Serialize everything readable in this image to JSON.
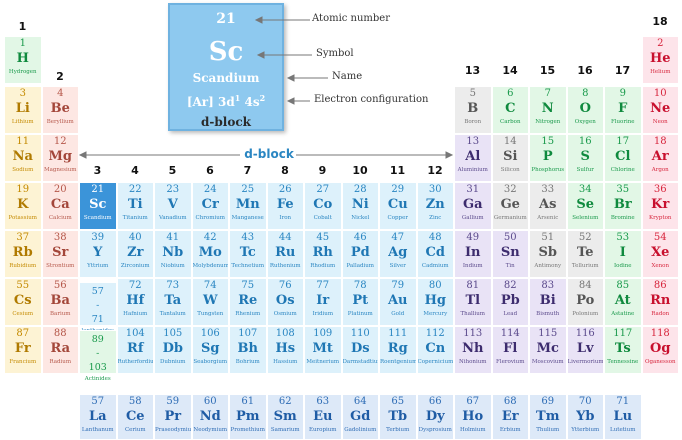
{
  "legend": {
    "number": "21",
    "symbol": "Sc",
    "name": "Scandium",
    "config_core": "[Ar] 3d",
    "config_sup1": "1",
    "config_mid": " 4s",
    "config_sup2": "2",
    "block": "d-block",
    "callouts": [
      "Atomic number",
      "Symbol",
      "Name",
      "Electron configuration"
    ]
  },
  "dblock_label": "d-block",
  "group_labels": [
    "1",
    "2",
    "3",
    "4",
    "5",
    "6",
    "7",
    "8",
    "9",
    "10",
    "11",
    "12",
    "13",
    "14",
    "15",
    "16",
    "17",
    "18"
  ],
  "placeholders": [
    {
      "range": "57 - 71",
      "label": "lanthanides",
      "kind": "lan"
    },
    {
      "range": "89 - 103",
      "label": "Actinides",
      "kind": "act"
    }
  ],
  "colors": {
    "alkali": "#fdf3d4",
    "alkaline": "#fde7e3",
    "transition": "#ddf1fb",
    "post": "#e9e3f6",
    "metalloid": "#ececec",
    "nonmetal": "#e2f7e6",
    "noble": "#fde4ea",
    "lanth": "#dde9f8",
    "highlight": "#3b94d9"
  },
  "elements": [
    {
      "n": "1",
      "s": "H",
      "name": "Hydrogen",
      "p": 1,
      "g": 1,
      "c": "nonmetal"
    },
    {
      "n": "2",
      "s": "He",
      "name": "Helium",
      "p": 1,
      "g": 18,
      "c": "noble"
    },
    {
      "n": "3",
      "s": "Li",
      "name": "Lithium",
      "p": 2,
      "g": 1,
      "c": "alkali"
    },
    {
      "n": "4",
      "s": "Be",
      "name": "Beryllium",
      "p": 2,
      "g": 2,
      "c": "alkaline"
    },
    {
      "n": "5",
      "s": "B",
      "name": "Boron",
      "p": 2,
      "g": 13,
      "c": "metalloid"
    },
    {
      "n": "6",
      "s": "C",
      "name": "Carbon",
      "p": 2,
      "g": 14,
      "c": "nonmetal"
    },
    {
      "n": "7",
      "s": "N",
      "name": "Nitrogen",
      "p": 2,
      "g": 15,
      "c": "nonmetal"
    },
    {
      "n": "8",
      "s": "O",
      "name": "Oxygen",
      "p": 2,
      "g": 16,
      "c": "nonmetal"
    },
    {
      "n": "9",
      "s": "F",
      "name": "Fluorine",
      "p": 2,
      "g": 17,
      "c": "nonmetal"
    },
    {
      "n": "10",
      "s": "Ne",
      "name": "Neon",
      "p": 2,
      "g": 18,
      "c": "noble"
    },
    {
      "n": "11",
      "s": "Na",
      "name": "Sodium",
      "p": 3,
      "g": 1,
      "c": "alkali"
    },
    {
      "n": "12",
      "s": "Mg",
      "name": "Magnesium",
      "p": 3,
      "g": 2,
      "c": "alkaline"
    },
    {
      "n": "13",
      "s": "Al",
      "name": "Aluminium",
      "p": 3,
      "g": 13,
      "c": "post"
    },
    {
      "n": "14",
      "s": "Si",
      "name": "Silicon",
      "p": 3,
      "g": 14,
      "c": "metalloid"
    },
    {
      "n": "15",
      "s": "P",
      "name": "Phosphorus",
      "p": 3,
      "g": 15,
      "c": "nonmetal"
    },
    {
      "n": "16",
      "s": "S",
      "name": "Sulfur",
      "p": 3,
      "g": 16,
      "c": "nonmetal"
    },
    {
      "n": "17",
      "s": "Cl",
      "name": "Chlorine",
      "p": 3,
      "g": 17,
      "c": "nonmetal"
    },
    {
      "n": "18",
      "s": "Ar",
      "name": "Argon",
      "p": 3,
      "g": 18,
      "c": "noble"
    },
    {
      "n": "19",
      "s": "K",
      "name": "Potassium",
      "p": 4,
      "g": 1,
      "c": "alkali"
    },
    {
      "n": "20",
      "s": "Ca",
      "name": "Calcium",
      "p": 4,
      "g": 2,
      "c": "alkaline"
    },
    {
      "n": "21",
      "s": "Sc",
      "name": "Scandium",
      "p": 4,
      "g": 3,
      "c": "hl"
    },
    {
      "n": "22",
      "s": "Ti",
      "name": "Titanium",
      "p": 4,
      "g": 4,
      "c": "transition"
    },
    {
      "n": "23",
      "s": "V",
      "name": "Vanadium",
      "p": 4,
      "g": 5,
      "c": "transition"
    },
    {
      "n": "24",
      "s": "Cr",
      "name": "Chromium",
      "p": 4,
      "g": 6,
      "c": "transition"
    },
    {
      "n": "25",
      "s": "Mn",
      "name": "Manganese",
      "p": 4,
      "g": 7,
      "c": "transition"
    },
    {
      "n": "26",
      "s": "Fe",
      "name": "Iron",
      "p": 4,
      "g": 8,
      "c": "transition"
    },
    {
      "n": "27",
      "s": "Co",
      "name": "Cobalt",
      "p": 4,
      "g": 9,
      "c": "transition"
    },
    {
      "n": "28",
      "s": "Ni",
      "name": "Nickel",
      "p": 4,
      "g": 10,
      "c": "transition"
    },
    {
      "n": "29",
      "s": "Cu",
      "name": "Copper",
      "p": 4,
      "g": 11,
      "c": "transition"
    },
    {
      "n": "30",
      "s": "Zn",
      "name": "Zinc",
      "p": 4,
      "g": 12,
      "c": "transition"
    },
    {
      "n": "31",
      "s": "Ga",
      "name": "Gallium",
      "p": 4,
      "g": 13,
      "c": "post"
    },
    {
      "n": "32",
      "s": "Ge",
      "name": "Germanium",
      "p": 4,
      "g": 14,
      "c": "metalloid"
    },
    {
      "n": "33",
      "s": "As",
      "name": "Arsenic",
      "p": 4,
      "g": 15,
      "c": "metalloid"
    },
    {
      "n": "34",
      "s": "Se",
      "name": "Selenium",
      "p": 4,
      "g": 16,
      "c": "nonmetal"
    },
    {
      "n": "35",
      "s": "Br",
      "name": "Bromine",
      "p": 4,
      "g": 17,
      "c": "nonmetal"
    },
    {
      "n": "36",
      "s": "Kr",
      "name": "Krypton",
      "p": 4,
      "g": 18,
      "c": "noble"
    },
    {
      "n": "37",
      "s": "Rb",
      "name": "Rubidium",
      "p": 5,
      "g": 1,
      "c": "alkali"
    },
    {
      "n": "38",
      "s": "Sr",
      "name": "Strontium",
      "p": 5,
      "g": 2,
      "c": "alkaline"
    },
    {
      "n": "39",
      "s": "Y",
      "name": "Yttrium",
      "p": 5,
      "g": 3,
      "c": "transition"
    },
    {
      "n": "40",
      "s": "Zr",
      "name": "Zirconium",
      "p": 5,
      "g": 4,
      "c": "transition"
    },
    {
      "n": "41",
      "s": "Nb",
      "name": "Niobium",
      "p": 5,
      "g": 5,
      "c": "transition"
    },
    {
      "n": "42",
      "s": "Mo",
      "name": "Molybdenum",
      "p": 5,
      "g": 6,
      "c": "transition"
    },
    {
      "n": "43",
      "s": "Tc",
      "name": "Technetium",
      "p": 5,
      "g": 7,
      "c": "transition"
    },
    {
      "n": "44",
      "s": "Ru",
      "name": "Ruthenium",
      "p": 5,
      "g": 8,
      "c": "transition"
    },
    {
      "n": "45",
      "s": "Rh",
      "name": "Rhodium",
      "p": 5,
      "g": 9,
      "c": "transition"
    },
    {
      "n": "46",
      "s": "Pd",
      "name": "Palladium",
      "p": 5,
      "g": 10,
      "c": "transition"
    },
    {
      "n": "47",
      "s": "Ag",
      "name": "Silver",
      "p": 5,
      "g": 11,
      "c": "transition"
    },
    {
      "n": "48",
      "s": "Cd",
      "name": "Cadmium",
      "p": 5,
      "g": 12,
      "c": "transition"
    },
    {
      "n": "49",
      "s": "In",
      "name": "Indium",
      "p": 5,
      "g": 13,
      "c": "post"
    },
    {
      "n": "50",
      "s": "Sn",
      "name": "Tin",
      "p": 5,
      "g": 14,
      "c": "post"
    },
    {
      "n": "51",
      "s": "Sb",
      "name": "Antimony",
      "p": 5,
      "g": 15,
      "c": "metalloid"
    },
    {
      "n": "52",
      "s": "Te",
      "name": "Tellurium",
      "p": 5,
      "g": 16,
      "c": "metalloid"
    },
    {
      "n": "53",
      "s": "I",
      "name": "Iodine",
      "p": 5,
      "g": 17,
      "c": "nonmetal"
    },
    {
      "n": "54",
      "s": "Xe",
      "name": "Xenon",
      "p": 5,
      "g": 18,
      "c": "noble"
    },
    {
      "n": "55",
      "s": "Cs",
      "name": "Cesium",
      "p": 6,
      "g": 1,
      "c": "alkali"
    },
    {
      "n": "56",
      "s": "Ba",
      "name": "Barium",
      "p": 6,
      "g": 2,
      "c": "alkaline"
    },
    {
      "n": "72",
      "s": "Hf",
      "name": "Hafnium",
      "p": 6,
      "g": 4,
      "c": "transition"
    },
    {
      "n": "73",
      "s": "Ta",
      "name": "Tantalum",
      "p": 6,
      "g": 5,
      "c": "transition"
    },
    {
      "n": "74",
      "s": "W",
      "name": "Tungsten",
      "p": 6,
      "g": 6,
      "c": "transition"
    },
    {
      "n": "75",
      "s": "Re",
      "name": "Rhenium",
      "p": 6,
      "g": 7,
      "c": "transition"
    },
    {
      "n": "76",
      "s": "Os",
      "name": "Osmium",
      "p": 6,
      "g": 8,
      "c": "transition"
    },
    {
      "n": "77",
      "s": "Ir",
      "name": "Iridium",
      "p": 6,
      "g": 9,
      "c": "transition"
    },
    {
      "n": "78",
      "s": "Pt",
      "name": "Platinum",
      "p": 6,
      "g": 10,
      "c": "transition"
    },
    {
      "n": "79",
      "s": "Au",
      "name": "Gold",
      "p": 6,
      "g": 11,
      "c": "transition"
    },
    {
      "n": "80",
      "s": "Hg",
      "name": "Mercury",
      "p": 6,
      "g": 12,
      "c": "transition"
    },
    {
      "n": "81",
      "s": "Tl",
      "name": "Thallium",
      "p": 6,
      "g": 13,
      "c": "post"
    },
    {
      "n": "82",
      "s": "Pb",
      "name": "Lead",
      "p": 6,
      "g": 14,
      "c": "post"
    },
    {
      "n": "83",
      "s": "Bi",
      "name": "Bismuth",
      "p": 6,
      "g": 15,
      "c": "post"
    },
    {
      "n": "84",
      "s": "Po",
      "name": "Polonium",
      "p": 6,
      "g": 16,
      "c": "metalloid"
    },
    {
      "n": "85",
      "s": "At",
      "name": "Astatine",
      "p": 6,
      "g": 17,
      "c": "nonmetal"
    },
    {
      "n": "86",
      "s": "Rn",
      "name": "Radon",
      "p": 6,
      "g": 18,
      "c": "noble"
    },
    {
      "n": "87",
      "s": "Fr",
      "name": "Francium",
      "p": 7,
      "g": 1,
      "c": "alkali"
    },
    {
      "n": "88",
      "s": "Ra",
      "name": "Radium",
      "p": 7,
      "g": 2,
      "c": "alkaline"
    },
    {
      "n": "104",
      "s": "Rf",
      "name": "Rutherfordium",
      "p": 7,
      "g": 4,
      "c": "transition"
    },
    {
      "n": "105",
      "s": "Db",
      "name": "Dubnium",
      "p": 7,
      "g": 5,
      "c": "transition"
    },
    {
      "n": "106",
      "s": "Sg",
      "name": "Seaborgium",
      "p": 7,
      "g": 6,
      "c": "transition"
    },
    {
      "n": "107",
      "s": "Bh",
      "name": "Bohrium",
      "p": 7,
      "g": 7,
      "c": "transition"
    },
    {
      "n": "108",
      "s": "Hs",
      "name": "Hassium",
      "p": 7,
      "g": 8,
      "c": "transition"
    },
    {
      "n": "109",
      "s": "Mt",
      "name": "Meitnerium",
      "p": 7,
      "g": 9,
      "c": "transition"
    },
    {
      "n": "110",
      "s": "Ds",
      "name": "Darmstadtium",
      "p": 7,
      "g": 10,
      "c": "transition"
    },
    {
      "n": "111",
      "s": "Rg",
      "name": "Roentgenium",
      "p": 7,
      "g": 11,
      "c": "transition"
    },
    {
      "n": "112",
      "s": "Cn",
      "name": "Copernicium",
      "p": 7,
      "g": 12,
      "c": "transition"
    },
    {
      "n": "113",
      "s": "Nh",
      "name": "Nihonium",
      "p": 7,
      "g": 13,
      "c": "post"
    },
    {
      "n": "114",
      "s": "Fl",
      "name": "Flerovium",
      "p": 7,
      "g": 14,
      "c": "post"
    },
    {
      "n": "115",
      "s": "Mc",
      "name": "Moscovium",
      "p": 7,
      "g": 15,
      "c": "post"
    },
    {
      "n": "116",
      "s": "Lv",
      "name": "Livermorium",
      "p": 7,
      "g": 16,
      "c": "post"
    },
    {
      "n": "117",
      "s": "Ts",
      "name": "Tennessine",
      "p": 7,
      "g": 17,
      "c": "nonmetal"
    },
    {
      "n": "118",
      "s": "Og",
      "name": "Oganesson",
      "p": 7,
      "g": 18,
      "c": "noble"
    }
  ],
  "lanthanides": [
    {
      "n": "57",
      "s": "La",
      "name": "Lanthanum"
    },
    {
      "n": "58",
      "s": "Ce",
      "name": "Cerium"
    },
    {
      "n": "59",
      "s": "Pr",
      "name": "Praseodymium"
    },
    {
      "n": "60",
      "s": "Nd",
      "name": "Neodymium"
    },
    {
      "n": "61",
      "s": "Pm",
      "name": "Promethium"
    },
    {
      "n": "62",
      "s": "Sm",
      "name": "Samarium"
    },
    {
      "n": "63",
      "s": "Eu",
      "name": "Europium"
    },
    {
      "n": "64",
      "s": "Gd",
      "name": "Gadolinium"
    },
    {
      "n": "65",
      "s": "Tb",
      "name": "Terbium"
    },
    {
      "n": "66",
      "s": "Dy",
      "name": "Dysprosium"
    },
    {
      "n": "67",
      "s": "Ho",
      "name": "Holmium"
    },
    {
      "n": "68",
      "s": "Er",
      "name": "Erbium"
    },
    {
      "n": "69",
      "s": "Tm",
      "name": "Thulium"
    },
    {
      "n": "70",
      "s": "Yb",
      "name": "Ytterbium"
    },
    {
      "n": "71",
      "s": "Lu",
      "name": "Lutetium"
    }
  ]
}
